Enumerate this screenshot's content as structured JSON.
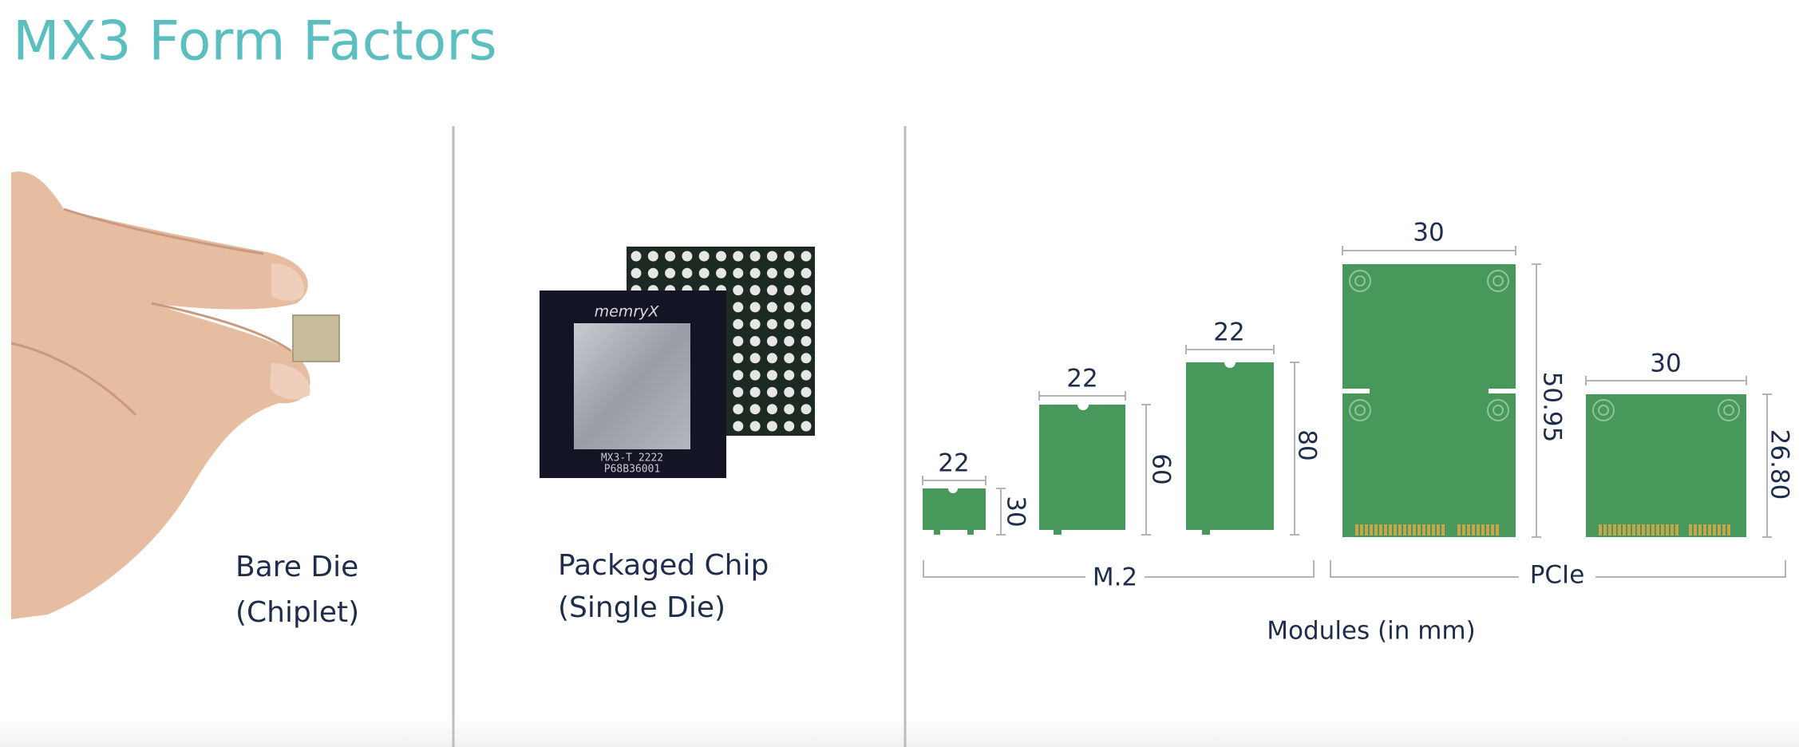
{
  "header": {
    "title": "MX3 Form Factors"
  },
  "bare_die": {
    "label_lines": [
      "Bare Die",
      "(Chiplet)"
    ]
  },
  "packaged_chip": {
    "chip_markings": [
      "memryX",
      "MX3-T 2222",
      "P68B36001"
    ],
    "label_lines": [
      "Packaged Chip",
      "(Single Die)"
    ]
  },
  "modules": {
    "items": [
      {
        "width": "22",
        "height": "30"
      },
      {
        "width": "22",
        "height": "60"
      },
      {
        "width": "22",
        "height": "80"
      },
      {
        "width": "30",
        "height": "50.95"
      },
      {
        "width": "30",
        "height": "26.80"
      }
    ],
    "groups": [
      "M.2",
      "PCIe"
    ],
    "caption": "Modules (in mm)"
  }
}
